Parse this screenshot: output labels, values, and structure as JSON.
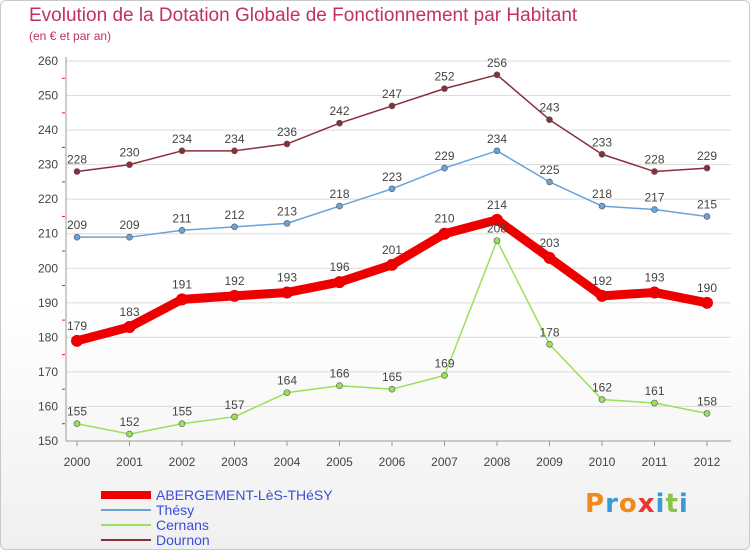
{
  "header": {
    "title": "Evolution de la Dotation Globale de Fonctionnement par Habitant",
    "subtitle": "(en € et par an)"
  },
  "logo": {
    "text": "Proxiti",
    "colors": [
      "#f08a1c",
      "#3a9ad9",
      "#f08a1c",
      "#e33",
      "#3a9ad9",
      "#8bc34a",
      "#3a9ad9"
    ]
  },
  "chart_data": {
    "type": "line",
    "x": [
      "2000",
      "2001",
      "2002",
      "2003",
      "2004",
      "2005",
      "2006",
      "2007",
      "2008",
      "2009",
      "2010",
      "2011",
      "2012"
    ],
    "ylim": [
      150,
      260
    ],
    "yticks": [
      150,
      160,
      170,
      180,
      190,
      200,
      210,
      220,
      230,
      240,
      250,
      260
    ],
    "grid": true,
    "legend_position": "bottom-left",
    "series": [
      {
        "name": "ABERGEMENT-LèS-THéSY",
        "color": "#ee0000",
        "width": 9,
        "marker": 6,
        "values": [
          179,
          183,
          191,
          192,
          193,
          196,
          201,
          210,
          214,
          203,
          192,
          193,
          190
        ]
      },
      {
        "name": "Thésy",
        "color": "#6aa3d8",
        "width": 1.5,
        "marker": 3,
        "values": [
          209,
          209,
          211,
          212,
          213,
          218,
          223,
          229,
          234,
          225,
          218,
          217,
          215
        ]
      },
      {
        "name": "Cernans",
        "color": "#9be05a",
        "width": 1.5,
        "marker": 3,
        "values": [
          155,
          152,
          155,
          157,
          164,
          166,
          165,
          169,
          208,
          178,
          162,
          161,
          158
        ]
      },
      {
        "name": "Dournon",
        "color": "#8a2f3a",
        "width": 1.5,
        "marker": 3,
        "values": [
          228,
          230,
          234,
          234,
          236,
          242,
          247,
          252,
          256,
          243,
          233,
          228,
          229
        ]
      }
    ]
  }
}
